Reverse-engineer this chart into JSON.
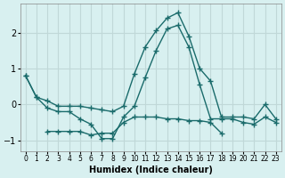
{
  "xlabel": "Humidex (Indice chaleur)",
  "x": [
    0,
    1,
    2,
    3,
    4,
    5,
    6,
    7,
    8,
    9,
    10,
    11,
    12,
    13,
    14,
    15,
    16,
    17,
    18,
    19,
    20,
    21,
    22,
    23
  ],
  "line1": [
    0.8,
    0.2,
    0.1,
    -0.05,
    -0.05,
    -0.05,
    -0.1,
    -0.15,
    -0.2,
    -0.05,
    0.85,
    1.6,
    2.05,
    2.4,
    2.55,
    1.9,
    1.0,
    0.65,
    -0.35,
    -0.35,
    -0.35,
    -0.4,
    0.0,
    -0.4
  ],
  "line2": [
    0.8,
    0.2,
    -0.1,
    -0.2,
    -0.2,
    -0.4,
    -0.55,
    -0.95,
    -0.95,
    -0.35,
    -0.05,
    0.75,
    1.5,
    2.1,
    2.2,
    1.6,
    0.55,
    -0.4,
    -0.4,
    -0.4,
    -0.5,
    -0.55,
    -0.35,
    -0.5
  ],
  "line3": [
    null,
    null,
    -0.75,
    -0.75,
    -0.75,
    -0.75,
    -0.85,
    -0.8,
    -0.8,
    -0.5,
    -0.35,
    -0.35,
    -0.35,
    -0.4,
    -0.4,
    -0.45,
    -0.45,
    -0.5,
    -0.8,
    null,
    null,
    null,
    null,
    null
  ],
  "bg_color": "#d8f0f0",
  "line_color": "#1a6b6b",
  "grid_color": "#c0d8d8",
  "ylim": [
    -1.3,
    2.8
  ],
  "yticks": [
    -1,
    0,
    1,
    2
  ],
  "xlim": [
    -0.5,
    23.5
  ]
}
